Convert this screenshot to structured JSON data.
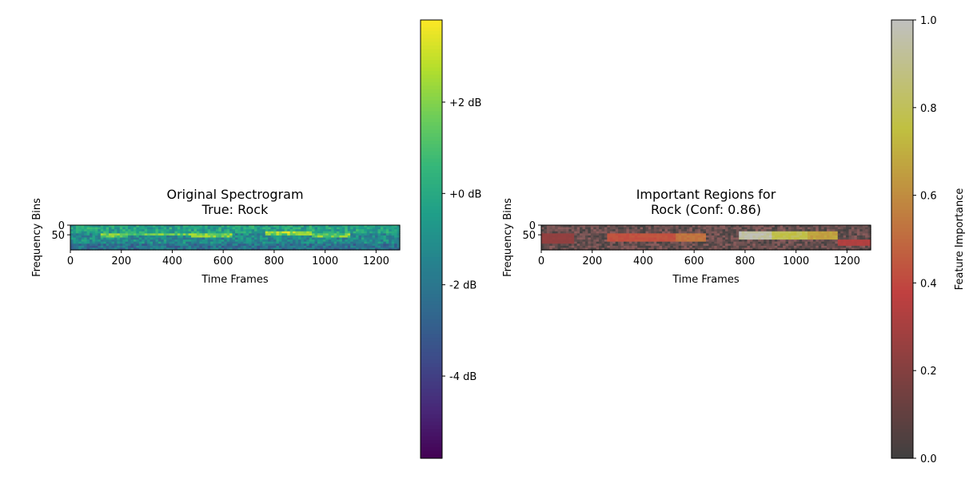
{
  "chart_data": [
    {
      "type": "heatmap",
      "title": "Original Spectrogram\nTrue: Rock",
      "xlabel": "Time Frames",
      "ylabel": "Frequency Bins",
      "xlim": [
        0,
        1293
      ],
      "ylim": [
        128,
        0
      ],
      "xticks": [
        0,
        200,
        400,
        600,
        800,
        1000,
        1200
      ],
      "yticks": [
        0,
        50
      ],
      "colormap": "viridis",
      "colorbar": {
        "range": [
          -5.8,
          3.8
        ],
        "ticks": [
          2,
          0,
          -2,
          -4
        ],
        "tick_labels": [
          "+2 dB",
          "+0 dB",
          "-2 dB",
          "-4 dB"
        ],
        "label": ""
      },
      "grid": false,
      "highlight_bands": [
        {
          "x": [
            120,
            230
          ],
          "y": [
            40,
            60
          ]
        },
        {
          "x": [
            230,
            470
          ],
          "y": [
            38,
            58
          ]
        },
        {
          "x": [
            470,
            640
          ],
          "y": [
            42,
            62
          ]
        },
        {
          "x": [
            760,
            950
          ],
          "y": [
            36,
            58
          ]
        },
        {
          "x": [
            950,
            1100
          ],
          "y": [
            40,
            60
          ]
        }
      ]
    },
    {
      "type": "heatmap",
      "title": "Important Regions for\nRock (Conf: 0.86)",
      "xlabel": "Time Frames",
      "ylabel": "Frequency Bins",
      "xlim": [
        0,
        1293
      ],
      "ylim": [
        128,
        0
      ],
      "xticks": [
        0,
        200,
        400,
        600,
        800,
        1000,
        1200
      ],
      "yticks": [
        0,
        50
      ],
      "colormap": "hot",
      "colorbar": {
        "range": [
          0.0,
          1.0
        ],
        "ticks": [
          0.0,
          0.2,
          0.4,
          0.6,
          0.8,
          1.0
        ],
        "tick_labels": [
          "0.0",
          "0.2",
          "0.4",
          "0.6",
          "0.8",
          "1.0"
        ],
        "label": "Feature Importance"
      },
      "grid": false,
      "importance_regions": [
        {
          "x": [
            0,
            130
          ],
          "y": [
            40,
            100
          ],
          "value": 0.25
        },
        {
          "x": [
            260,
            530
          ],
          "y": [
            40,
            80
          ],
          "value": 0.45
        },
        {
          "x": [
            530,
            650
          ],
          "y": [
            40,
            80
          ],
          "value": 0.55
        },
        {
          "x": [
            780,
            910
          ],
          "y": [
            30,
            70
          ],
          "value": 1.0
        },
        {
          "x": [
            910,
            1040
          ],
          "y": [
            30,
            70
          ],
          "value": 0.82
        },
        {
          "x": [
            1040,
            1160
          ],
          "y": [
            30,
            70
          ],
          "value": 0.7
        },
        {
          "x": [
            1160,
            1293
          ],
          "y": [
            70,
            110
          ],
          "value": 0.35
        }
      ]
    }
  ]
}
